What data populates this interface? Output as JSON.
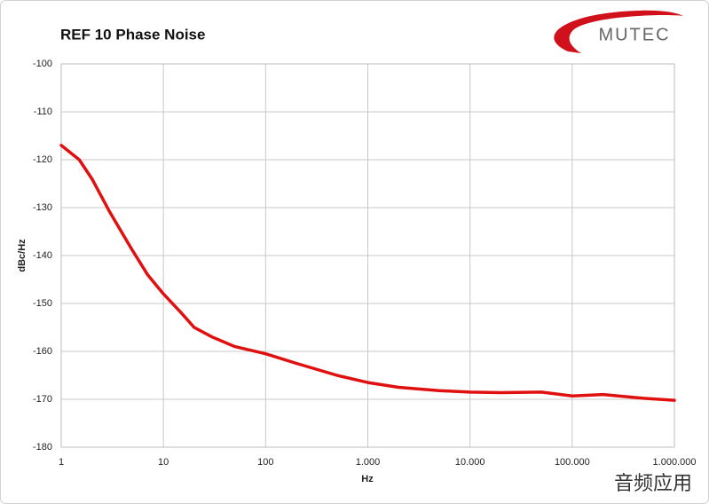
{
  "chart_data": {
    "type": "line",
    "title": "REF 10 Phase Noise",
    "logo_text": "MUTEC",
    "watermark": "音频应用",
    "x_label": "Hz",
    "y_label": "dBc/Hz",
    "xscale": "log",
    "grid": true,
    "color": "#e01010",
    "x": [
      1,
      1.5,
      2,
      3,
      5,
      7,
      10,
      15,
      20,
      30,
      50,
      100,
      200,
      500,
      1000,
      2000,
      5000,
      10000,
      20000,
      50000,
      100000,
      200000,
      500000,
      1000000
    ],
    "values": [
      -117,
      -120,
      -124,
      -131,
      -139,
      -144,
      -148,
      -152,
      -155,
      -157,
      -159,
      -160.5,
      -162.5,
      -165,
      -166.5,
      -167.5,
      -168.2,
      -168.5,
      -168.6,
      -168.5,
      -169.3,
      -169,
      -169.8,
      -170.2
    ],
    "xlim": [
      1,
      1000000
    ],
    "ylim": [
      -180,
      -100
    ],
    "xticks": [
      1,
      10,
      100,
      {
        "value": 1000,
        "label": "1.000"
      },
      {
        "value": 10000,
        "label": "10.000"
      },
      {
        "value": 100000,
        "label": "100.000"
      },
      {
        "value": 1000000,
        "label": "1.000.000"
      }
    ],
    "yticks": [
      -180,
      -170,
      -160,
      -150,
      -140,
      -130,
      -120,
      -110,
      -100
    ]
  }
}
